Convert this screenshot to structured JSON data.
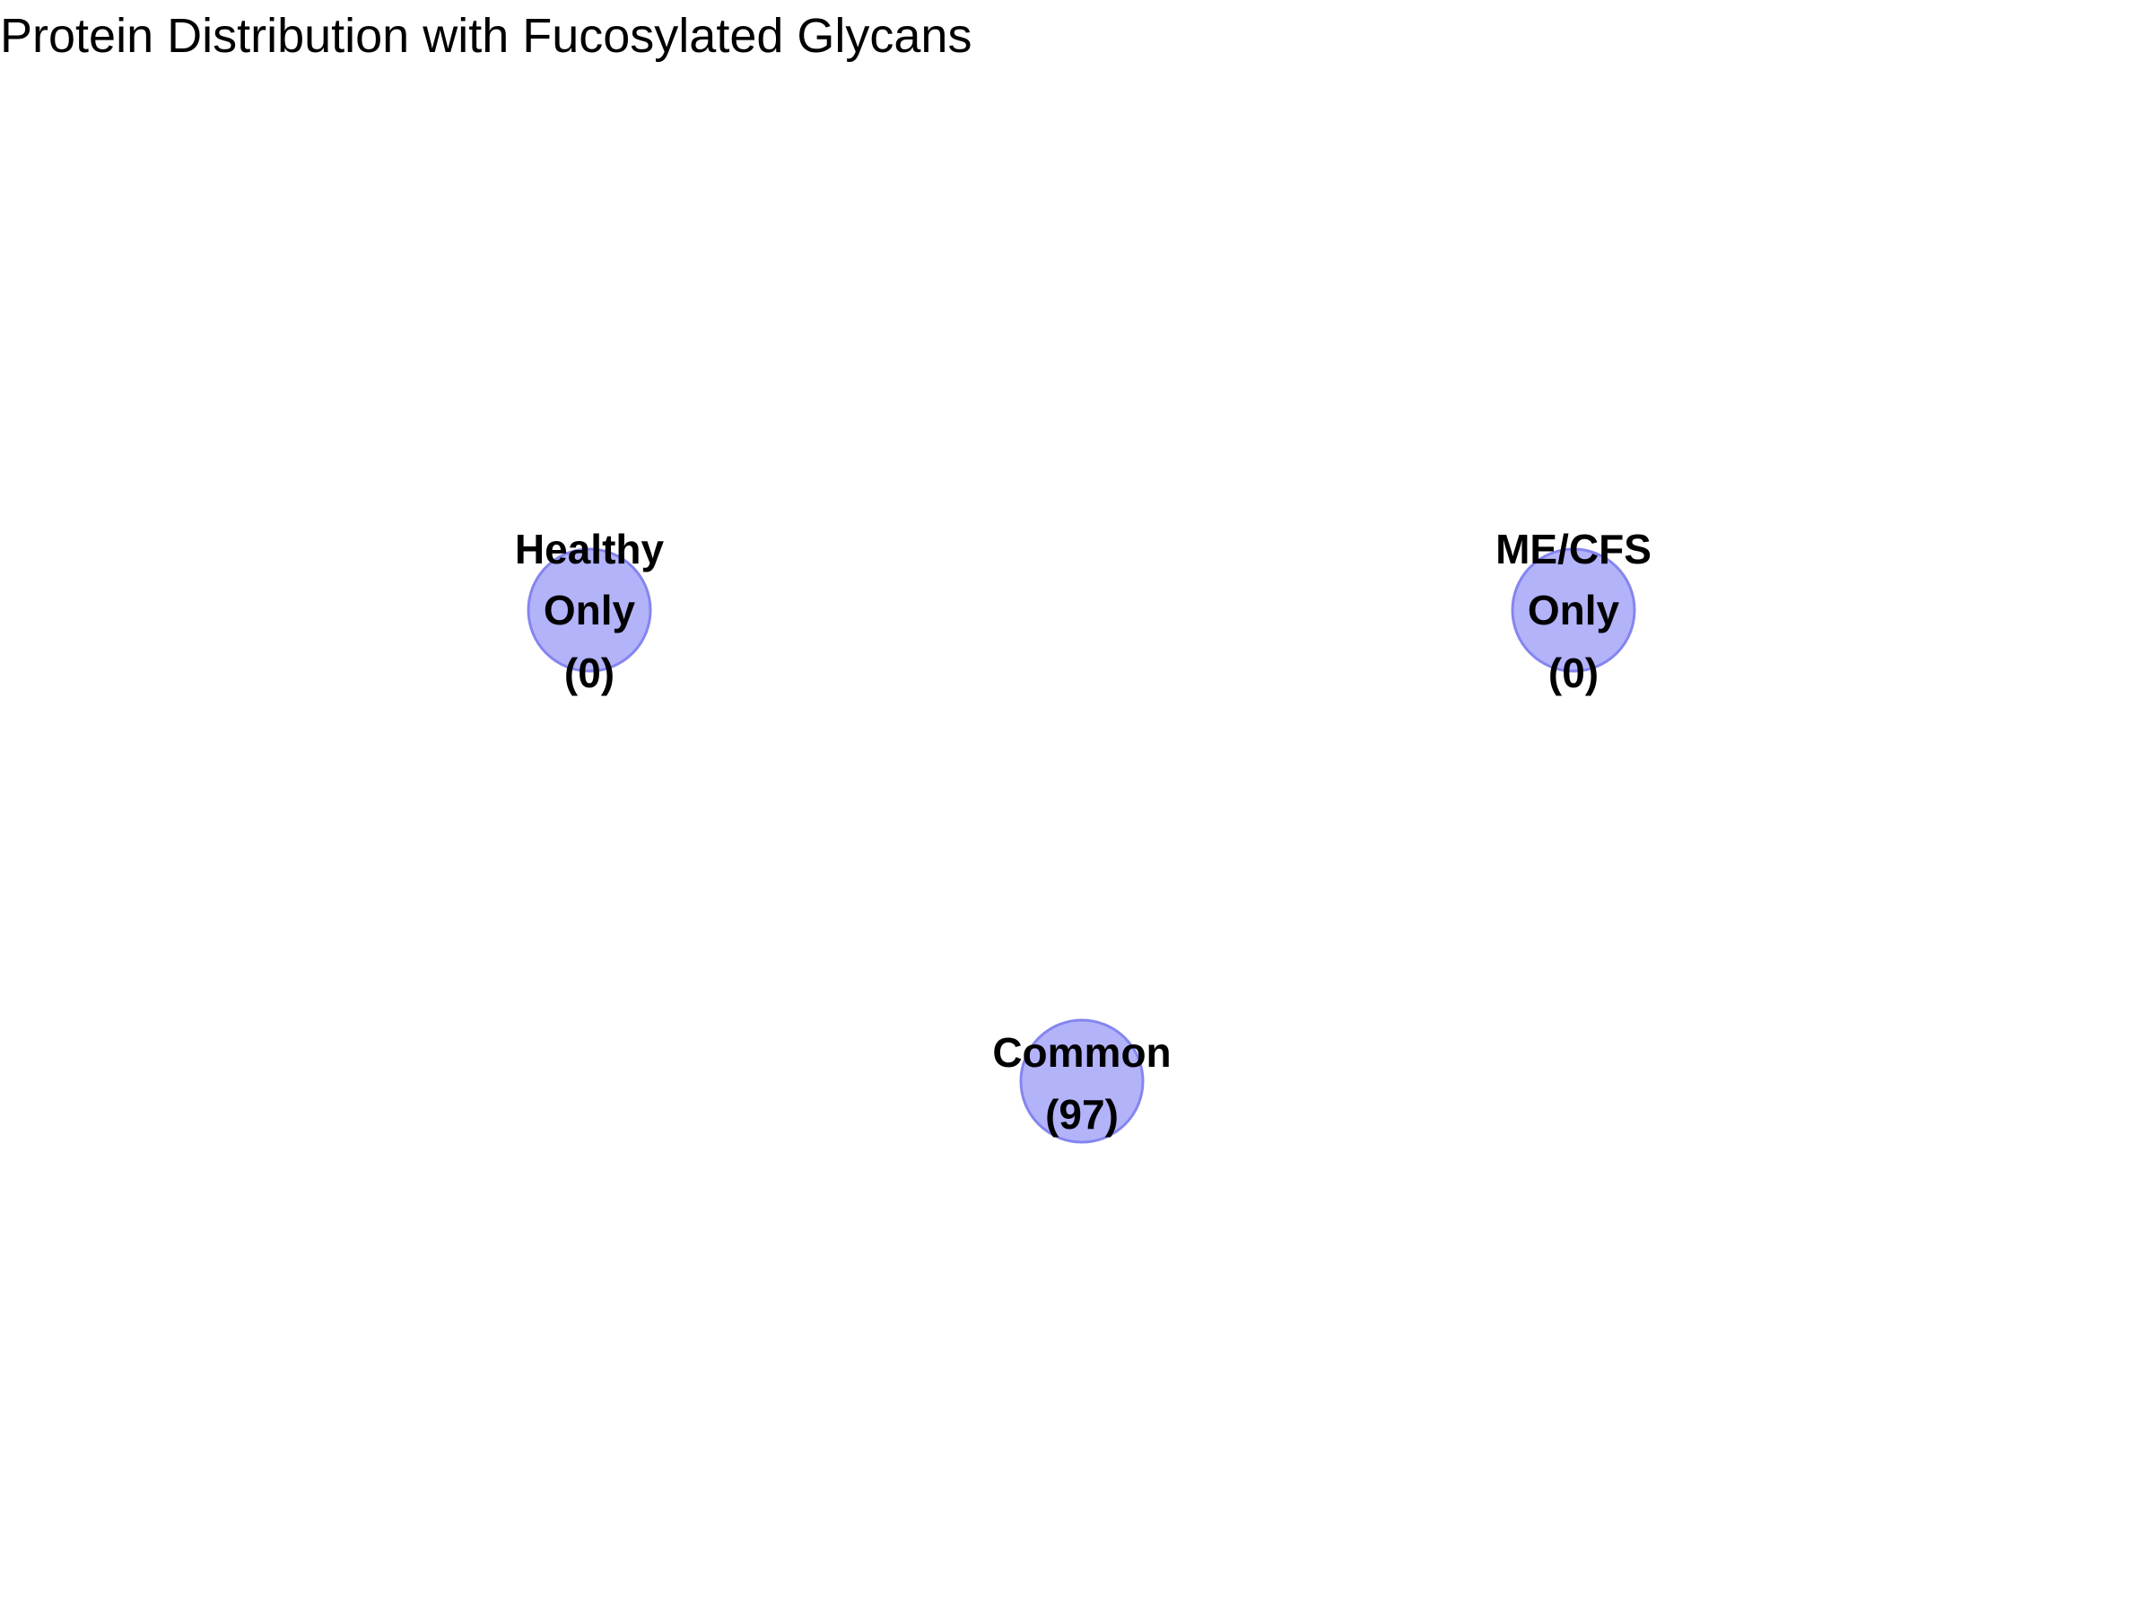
{
  "title": "Protein Distribution with Fucosylated Glycans",
  "colors": {
    "node_fill": "#b3b3fa",
    "node_stroke": "#8585f0",
    "text": "#000000"
  },
  "nodes": [
    {
      "id": "healthy-only",
      "lines": [
        "Healthy",
        "Only",
        "(0)"
      ],
      "count": 0
    },
    {
      "id": "mecfs-only",
      "lines": [
        "ME/CFS",
        "Only",
        "(0)"
      ],
      "count": 0
    },
    {
      "id": "common",
      "lines": [
        "Common",
        "(97)"
      ],
      "count": 97
    }
  ]
}
